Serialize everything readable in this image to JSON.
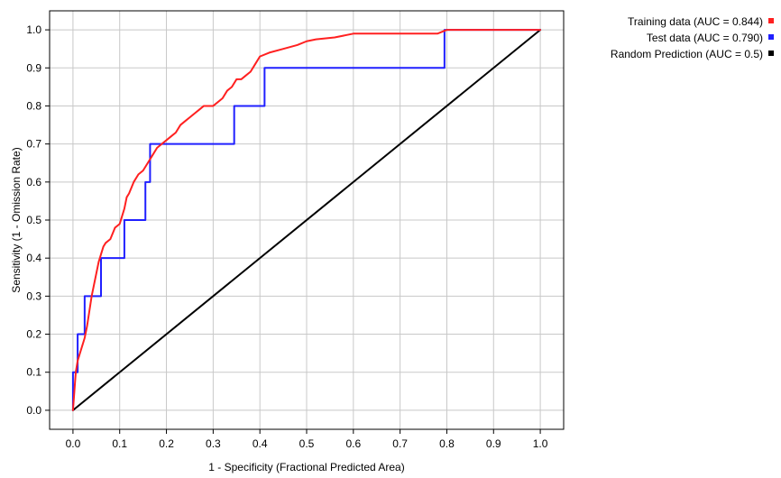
{
  "chart_data": {
    "type": "line",
    "title": "",
    "xlabel": "1 - Specificity  (Fractional Predicted Area)",
    "ylabel": "Sensitivity  (1 - Omission Rate)",
    "xlim": [
      -0.05,
      1.05
    ],
    "ylim": [
      -0.05,
      1.05
    ],
    "xticks": [
      0.0,
      0.1,
      0.2,
      0.3,
      0.4,
      0.5,
      0.6,
      0.7,
      0.8,
      0.9,
      1.0
    ],
    "yticks": [
      0.0,
      0.1,
      0.2,
      0.3,
      0.4,
      0.5,
      0.6,
      0.7,
      0.8,
      0.9,
      1.0
    ],
    "xtick_labels": [
      "0.0",
      "0.1",
      "0.2",
      "0.3",
      "0.4",
      "0.5",
      "0.6",
      "0.7",
      "0.8",
      "0.9",
      "1.0"
    ],
    "ytick_labels": [
      "0.0",
      "0.1",
      "0.2",
      "0.3",
      "0.4",
      "0.5",
      "0.6",
      "0.7",
      "0.8",
      "0.9",
      "1.0"
    ],
    "grid": true,
    "legend_position": "top-right outside plot",
    "series": [
      {
        "name": "Training data (AUC = 0.844)",
        "color": "#ff2020",
        "x": [
          0.0,
          0.003,
          0.006,
          0.01,
          0.015,
          0.02,
          0.025,
          0.03,
          0.035,
          0.04,
          0.045,
          0.05,
          0.055,
          0.06,
          0.065,
          0.07,
          0.08,
          0.09,
          0.1,
          0.105,
          0.11,
          0.115,
          0.12,
          0.13,
          0.14,
          0.15,
          0.16,
          0.17,
          0.18,
          0.19,
          0.2,
          0.21,
          0.22,
          0.23,
          0.24,
          0.25,
          0.26,
          0.27,
          0.28,
          0.29,
          0.3,
          0.32,
          0.33,
          0.34,
          0.35,
          0.36,
          0.37,
          0.38,
          0.39,
          0.4,
          0.42,
          0.45,
          0.48,
          0.5,
          0.52,
          0.56,
          0.6,
          0.65,
          0.7,
          0.75,
          0.78,
          0.8,
          0.85,
          0.9,
          0.95,
          1.0
        ],
        "values": [
          0.0,
          0.05,
          0.1,
          0.13,
          0.15,
          0.17,
          0.19,
          0.22,
          0.26,
          0.3,
          0.33,
          0.36,
          0.39,
          0.41,
          0.43,
          0.44,
          0.45,
          0.48,
          0.49,
          0.51,
          0.53,
          0.56,
          0.57,
          0.6,
          0.62,
          0.63,
          0.65,
          0.67,
          0.69,
          0.7,
          0.71,
          0.72,
          0.73,
          0.75,
          0.76,
          0.77,
          0.78,
          0.79,
          0.8,
          0.8,
          0.8,
          0.82,
          0.84,
          0.85,
          0.87,
          0.87,
          0.88,
          0.89,
          0.91,
          0.93,
          0.94,
          0.95,
          0.96,
          0.97,
          0.975,
          0.98,
          0.99,
          0.99,
          0.99,
          0.99,
          0.99,
          1.0,
          1.0,
          1.0,
          1.0,
          1.0
        ]
      },
      {
        "name": "Test data (AUC = 0.790)",
        "color": "#2020ff",
        "x": [
          0.0,
          0.0,
          0.01,
          0.01,
          0.025,
          0.025,
          0.035,
          0.035,
          0.06,
          0.06,
          0.065,
          0.065,
          0.11,
          0.11,
          0.155,
          0.155,
          0.165,
          0.165,
          0.345,
          0.345,
          0.41,
          0.41,
          0.795,
          0.795,
          1.0
        ],
        "values": [
          0.0,
          0.1,
          0.1,
          0.2,
          0.2,
          0.3,
          0.3,
          0.3,
          0.3,
          0.4,
          0.4,
          0.4,
          0.4,
          0.5,
          0.5,
          0.6,
          0.6,
          0.7,
          0.7,
          0.8,
          0.8,
          0.9,
          0.9,
          1.0,
          1.0
        ]
      },
      {
        "name": "Random Prediction (AUC = 0.5)",
        "color": "#000000",
        "x": [
          0.0,
          1.0
        ],
        "values": [
          0.0,
          1.0
        ]
      }
    ]
  }
}
